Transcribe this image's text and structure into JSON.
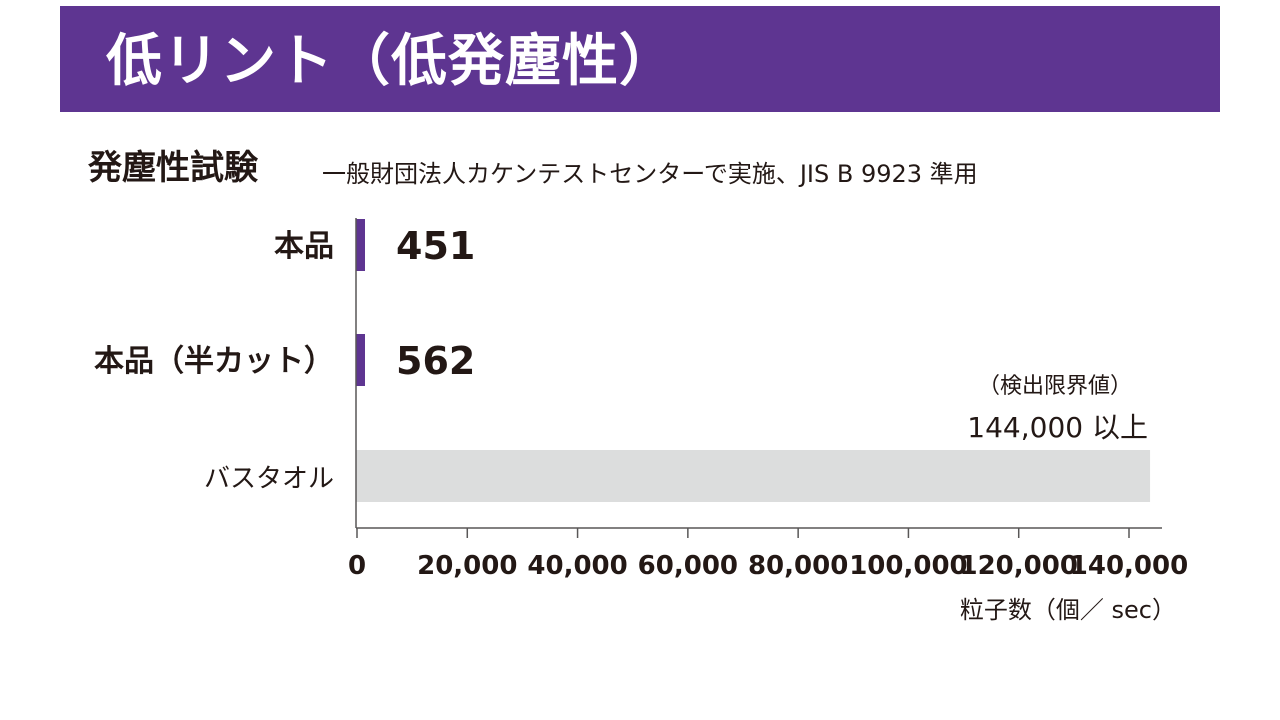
{
  "header": {
    "title": "低リント（低発塵性）"
  },
  "section": {
    "title": "発塵性試験",
    "note": "一般財団法人カケンテストセンターで実施、JIS B 9923 準用"
  },
  "annotation": {
    "label": "（検出限界値）",
    "value": "144,000 以上"
  },
  "chart_data": {
    "type": "bar",
    "orientation": "horizontal",
    "categories": [
      "本品",
      "本品（半カット）",
      "バスタオル"
    ],
    "values": [
      451,
      562,
      144000
    ],
    "value_labels": [
      "451",
      "562",
      ""
    ],
    "xlabel": "粒子数（個／ sec）",
    "xlim": [
      0,
      144000
    ],
    "xticks": [
      0,
      20000,
      40000,
      60000,
      80000,
      100000,
      120000,
      140000
    ],
    "xtick_labels": [
      "0",
      "20,000",
      "40,000",
      "60,000",
      "80,000",
      "100,000",
      "120,000",
      "140,000"
    ],
    "grid": false,
    "legend": "none",
    "colors": [
      "#5e3591",
      "#5e3591",
      "#dcdddd"
    ]
  }
}
